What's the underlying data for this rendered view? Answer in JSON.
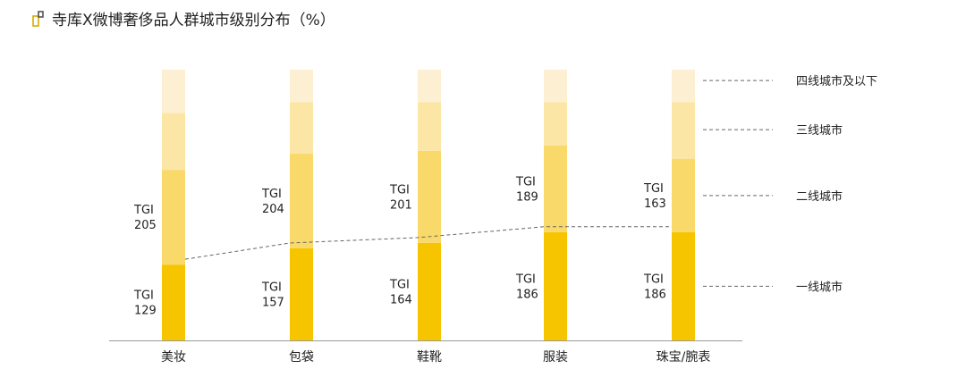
{
  "title": "寺库X微博奢侈品人群城市级别分布（%）",
  "colors": {
    "tier1": "#F7C500",
    "tier2": "#FAD96B",
    "tier3": "#FCE6A6",
    "tier4": "#FDF0D2",
    "line": "#666666",
    "axis": "#9a9a9a"
  },
  "chart_data": {
    "type": "bar",
    "stacked": true,
    "categories": [
      "美妆",
      "包袋",
      "鞋靴",
      "服装",
      "珠宝/腕表"
    ],
    "series": [
      {
        "name": "一线城市",
        "values": [
          28,
          34,
          36,
          40,
          40
        ],
        "tgi": [
          "129",
          "157",
          "164",
          "186",
          "186"
        ]
      },
      {
        "name": "二线城市",
        "values": [
          35,
          35,
          34,
          32,
          27
        ],
        "tgi": [
          "205",
          "204",
          "201",
          "189",
          "163"
        ]
      },
      {
        "name": "三线城市",
        "values": [
          21,
          19,
          18,
          16,
          21
        ],
        "tgi": []
      },
      {
        "name": "四线城市及以下",
        "values": [
          16,
          12,
          12,
          12,
          12
        ],
        "tgi": []
      }
    ],
    "tgi_label": "TGI",
    "ylim": [
      0,
      100
    ],
    "legend_position": "right"
  }
}
